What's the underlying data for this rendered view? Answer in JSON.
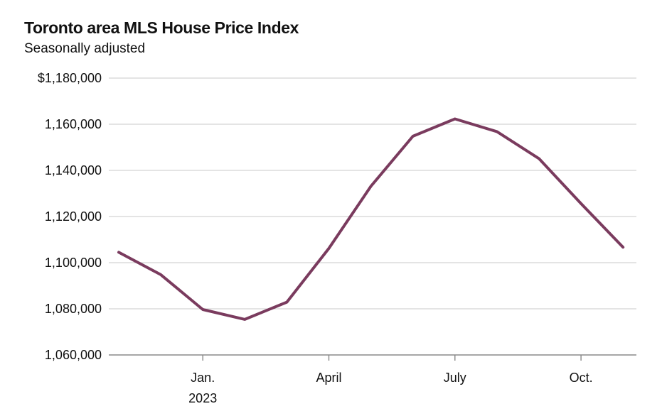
{
  "chart_data": {
    "type": "line",
    "title": "Toronto area MLS House Price Index",
    "subtitle": "Seasonally adjusted",
    "xlabel": "",
    "ylabel": "",
    "ylim": [
      1060000,
      1180000
    ],
    "y_ticks": [
      {
        "value": 1180000,
        "label": "$1,180,000"
      },
      {
        "value": 1160000,
        "label": "1,160,000"
      },
      {
        "value": 1140000,
        "label": "1,140,000"
      },
      {
        "value": 1120000,
        "label": "1,120,000"
      },
      {
        "value": 1100000,
        "label": "1,100,000"
      },
      {
        "value": 1080000,
        "label": "1,080,000"
      },
      {
        "value": 1060000,
        "label": "1,060,000"
      }
    ],
    "x_ticks": [
      {
        "x": "2023-01",
        "label": "Jan.",
        "sublabel": "2023"
      },
      {
        "x": "2023-04",
        "label": "April",
        "sublabel": ""
      },
      {
        "x": "2023-07",
        "label": "July",
        "sublabel": ""
      },
      {
        "x": "2023-10",
        "label": "Oct.",
        "sublabel": ""
      }
    ],
    "grid": true,
    "series": [
      {
        "color": "#7a3b5e",
        "points": [
          {
            "x": "2022-11",
            "y": 1104500
          },
          {
            "x": "2022-12",
            "y": 1094800
          },
          {
            "x": "2023-01",
            "y": 1079700
          },
          {
            "x": "2023-02",
            "y": 1075400
          },
          {
            "x": "2023-03",
            "y": 1082900
          },
          {
            "x": "2023-04",
            "y": 1106200
          },
          {
            "x": "2023-05",
            "y": 1133100
          },
          {
            "x": "2023-06",
            "y": 1154800
          },
          {
            "x": "2023-07",
            "y": 1162300
          },
          {
            "x": "2023-08",
            "y": 1156800
          },
          {
            "x": "2023-09",
            "y": 1145100
          },
          {
            "x": "2023-10",
            "y": 1125600
          },
          {
            "x": "2023-11",
            "y": 1106700
          }
        ]
      }
    ]
  },
  "colors": {
    "line": "#7a3b5e",
    "grid": "#c8c8c8",
    "axis": "#888888",
    "text": "#111111"
  }
}
